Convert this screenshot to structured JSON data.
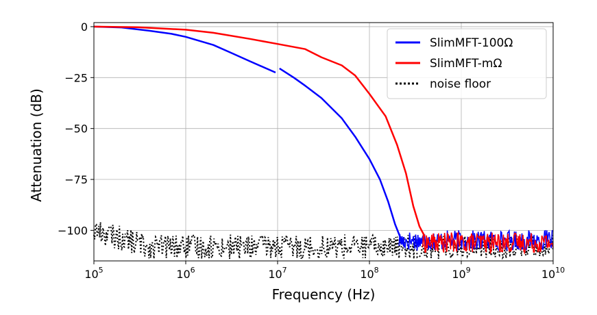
{
  "chart_data": {
    "type": "line",
    "xlabel": "Frequency (Hz)",
    "ylabel": "Attenuation (dB)",
    "xscale": "log",
    "xlim": [
      100000,
      10000000000
    ],
    "ylim": [
      -115,
      2
    ],
    "x_ticks": [
      {
        "value": 100000,
        "base": "10",
        "exp": "5"
      },
      {
        "value": 1000000,
        "base": "10",
        "exp": "6"
      },
      {
        "value": 10000000,
        "base": "10",
        "exp": "7"
      },
      {
        "value": 100000000,
        "base": "10",
        "exp": "8"
      },
      {
        "value": 1000000000,
        "base": "10",
        "exp": "9"
      },
      {
        "value": 10000000000,
        "base": "10",
        "exp": "10"
      }
    ],
    "y_ticks": [
      {
        "value": 0,
        "label": "0"
      },
      {
        "value": -25,
        "label": "−25"
      },
      {
        "value": -50,
        "label": "−50"
      },
      {
        "value": -75,
        "label": "−75"
      },
      {
        "value": -100,
        "label": "−100"
      }
    ],
    "grid": true,
    "legend_position": "top-right",
    "series": [
      {
        "name": "SlimMFT-100Ω",
        "color": "#0000ff",
        "style": "solid",
        "segments": [
          {
            "x": [
              100000,
              200000,
              400000,
              700000,
              1000000,
              2000000,
              3000000,
              5000000,
              9500000
            ],
            "y": [
              0,
              -0.4,
              -2,
              -3.5,
              -5,
              -9,
              -12.5,
              -17,
              -22.5
            ]
          },
          {
            "x": [
              10500000,
              15000000,
              20000000,
              30000000,
              50000000,
              70000000,
              100000000,
              130000000,
              160000000,
              190000000,
              215000000,
              240000000
            ],
            "y": [
              -20.5,
              -25,
              -29,
              -35,
              -45,
              -54,
              -65,
              -75,
              -86,
              -97,
              -103,
              -108
            ]
          }
        ],
        "noise": {
          "from_x": 210000000,
          "to_x": 10000000000,
          "center": -105,
          "spread": 5
        }
      },
      {
        "name": "SlimMFT-mΩ",
        "color": "#ff0000",
        "style": "solid",
        "segments": [
          {
            "x": [
              100000,
              300000,
              1000000,
              2000000,
              5000000,
              10000000,
              20000000,
              30000000,
              50000000,
              70000000,
              100000000,
              150000000,
              200000000,
              250000000,
              300000000,
              350000000,
              400000000
            ],
            "y": [
              0,
              -0.3,
              -1.5,
              -3,
              -6,
              -8.5,
              -11,
              -15,
              -19,
              -24,
              -33,
              -44,
              -58,
              -72,
              -88,
              -98,
              -103
            ]
          }
        ],
        "noise": {
          "from_x": 380000000,
          "to_x": 10000000000,
          "center": -106,
          "spread": 5
        }
      },
      {
        "name": "noise floor",
        "color": "#000000",
        "style": "dotted",
        "noise": {
          "from_x": 100000,
          "to_x": 10000000000,
          "center": -108,
          "spread": 6,
          "start_level": -100
        }
      }
    ]
  }
}
